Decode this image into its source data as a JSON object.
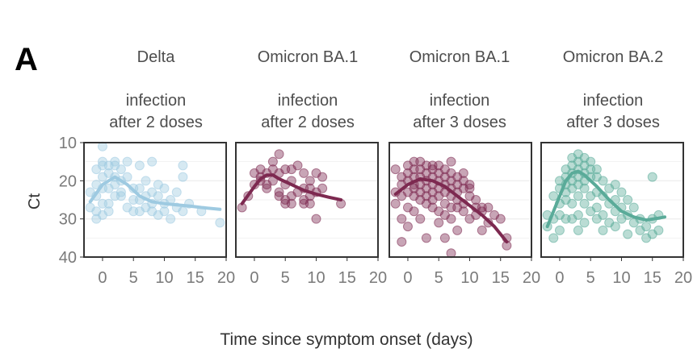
{
  "figure": {
    "panel_letter": "A",
    "xlabel": "Time since symptom onset (days)",
    "ylabel": "Ct"
  },
  "chart_data": {
    "type": "scatter",
    "xlabel": "Time since symptom onset (days)",
    "ylabel": "Ct",
    "xlim": [
      -3,
      20
    ],
    "ylim": [
      10,
      40
    ],
    "y_reversed": true,
    "x_ticks": [
      0,
      5,
      10,
      15,
      20
    ],
    "y_ticks": [
      10,
      20,
      30,
      40
    ],
    "grid": true,
    "facets": [
      {
        "title_line1": "Delta",
        "title_line2": "infection",
        "title_line3": "after 2 doses",
        "color": "#9ecae1",
        "points": [
          [
            -2,
            23
          ],
          [
            -2,
            27
          ],
          [
            -1,
            17
          ],
          [
            -1,
            21
          ],
          [
            -1,
            24
          ],
          [
            -1,
            30
          ],
          [
            -1,
            28
          ],
          [
            0,
            15
          ],
          [
            0,
            16
          ],
          [
            0,
            11
          ],
          [
            0,
            19
          ],
          [
            0,
            22
          ],
          [
            0,
            26
          ],
          [
            0,
            29
          ],
          [
            1,
            16
          ],
          [
            1,
            18
          ],
          [
            1,
            22
          ],
          [
            1,
            26
          ],
          [
            1,
            28
          ],
          [
            2,
            15
          ],
          [
            2,
            19
          ],
          [
            2,
            21
          ],
          [
            2,
            24
          ],
          [
            2,
            16
          ],
          [
            3,
            17
          ],
          [
            3,
            20
          ],
          [
            3,
            24
          ],
          [
            3,
            23
          ],
          [
            4,
            15
          ],
          [
            4,
            19
          ],
          [
            4,
            27
          ],
          [
            5,
            22
          ],
          [
            5,
            25
          ],
          [
            5,
            28
          ],
          [
            6,
            16
          ],
          [
            6,
            22
          ],
          [
            6,
            28
          ],
          [
            6,
            25
          ],
          [
            7,
            24
          ],
          [
            7,
            27
          ],
          [
            7,
            20
          ],
          [
            8,
            15
          ],
          [
            8,
            26
          ],
          [
            8,
            28
          ],
          [
            8,
            23
          ],
          [
            9,
            24
          ],
          [
            9,
            21
          ],
          [
            9,
            29
          ],
          [
            10,
            22
          ],
          [
            10,
            26
          ],
          [
            10,
            28
          ],
          [
            11,
            25
          ],
          [
            11,
            30
          ],
          [
            12,
            23
          ],
          [
            12,
            27
          ],
          [
            13,
            16
          ],
          [
            13,
            19
          ],
          [
            13,
            28
          ],
          [
            14,
            26
          ],
          [
            16,
            28
          ],
          [
            19,
            31
          ]
        ],
        "smooth": [
          [
            -2,
            25.5
          ],
          [
            0,
            21
          ],
          [
            2,
            19
          ],
          [
            4,
            21
          ],
          [
            6,
            24
          ],
          [
            8,
            25.5
          ],
          [
            10,
            26
          ],
          [
            12,
            26.3
          ],
          [
            14,
            26.6
          ],
          [
            16,
            27
          ],
          [
            19,
            27.5
          ]
        ]
      },
      {
        "title_line1": "Omicron BA.1",
        "title_line2": "infection",
        "title_line3": "after 2 doses",
        "color": "#7d2950",
        "points": [
          [
            -2,
            27
          ],
          [
            -1,
            24
          ],
          [
            0,
            21
          ],
          [
            0,
            18
          ],
          [
            1,
            17
          ],
          [
            1,
            20
          ],
          [
            1,
            19
          ],
          [
            2,
            21
          ],
          [
            2,
            22
          ],
          [
            2,
            18
          ],
          [
            3,
            15
          ],
          [
            3,
            17
          ],
          [
            3,
            20
          ],
          [
            4,
            13
          ],
          [
            4,
            18
          ],
          [
            4,
            24
          ],
          [
            4,
            23
          ],
          [
            5,
            17
          ],
          [
            5,
            21
          ],
          [
            5,
            25
          ],
          [
            5,
            26
          ],
          [
            6,
            17
          ],
          [
            6,
            20
          ],
          [
            6,
            24
          ],
          [
            6,
            26
          ],
          [
            7,
            16
          ],
          [
            7,
            23
          ],
          [
            8,
            18
          ],
          [
            8,
            22
          ],
          [
            8,
            25
          ],
          [
            8,
            26
          ],
          [
            9,
            20
          ],
          [
            9,
            22
          ],
          [
            9,
            24
          ],
          [
            9,
            26
          ],
          [
            10,
            18
          ],
          [
            10,
            23
          ],
          [
            10,
            30
          ],
          [
            11,
            19
          ],
          [
            11,
            22
          ],
          [
            14,
            26
          ]
        ],
        "smooth": [
          [
            -2,
            26
          ],
          [
            0,
            21.5
          ],
          [
            1,
            19.5
          ],
          [
            2,
            18.5
          ],
          [
            3,
            18.5
          ],
          [
            4,
            19.5
          ],
          [
            6,
            21
          ],
          [
            8,
            22.5
          ],
          [
            10,
            23.5
          ],
          [
            12,
            24.3
          ],
          [
            14,
            25
          ]
        ]
      },
      {
        "title_line1": "Omicron BA.1",
        "title_line2": "infection",
        "title_line3": "after 3 doses",
        "color": "#7d2950",
        "points": [
          [
            -2,
            23
          ],
          [
            -2,
            26
          ],
          [
            -2,
            17
          ],
          [
            -1,
            19
          ],
          [
            -1,
            21
          ],
          [
            -1,
            24
          ],
          [
            -1,
            30
          ],
          [
            -1,
            36
          ],
          [
            0,
            16
          ],
          [
            0,
            18
          ],
          [
            0,
            20
          ],
          [
            0,
            23
          ],
          [
            0,
            27
          ],
          [
            0,
            32
          ],
          [
            1,
            15
          ],
          [
            1,
            17
          ],
          [
            1,
            19
          ],
          [
            1,
            22
          ],
          [
            1,
            24
          ],
          [
            1,
            28
          ],
          [
            1,
            21
          ],
          [
            2,
            15
          ],
          [
            2,
            17
          ],
          [
            2,
            19
          ],
          [
            2,
            21
          ],
          [
            2,
            23
          ],
          [
            2,
            25
          ],
          [
            2,
            30
          ],
          [
            3,
            16
          ],
          [
            3,
            18
          ],
          [
            3,
            20
          ],
          [
            3,
            22
          ],
          [
            3,
            24
          ],
          [
            3,
            26
          ],
          [
            3,
            35
          ],
          [
            4,
            16
          ],
          [
            4,
            17
          ],
          [
            4,
            19
          ],
          [
            4,
            21
          ],
          [
            4,
            23
          ],
          [
            4,
            25
          ],
          [
            4,
            27
          ],
          [
            5,
            16
          ],
          [
            5,
            18
          ],
          [
            5,
            20
          ],
          [
            5,
            22
          ],
          [
            5,
            24
          ],
          [
            5,
            28
          ],
          [
            5,
            31
          ],
          [
            6,
            17
          ],
          [
            6,
            19
          ],
          [
            6,
            21
          ],
          [
            6,
            23
          ],
          [
            6,
            26
          ],
          [
            6,
            29
          ],
          [
            6,
            35
          ],
          [
            7,
            15
          ],
          [
            7,
            18
          ],
          [
            7,
            20
          ],
          [
            7,
            22
          ],
          [
            7,
            24
          ],
          [
            7,
            27
          ],
          [
            7,
            30
          ],
          [
            7,
            39
          ],
          [
            8,
            19
          ],
          [
            8,
            21
          ],
          [
            8,
            23
          ],
          [
            8,
            25
          ],
          [
            8,
            27
          ],
          [
            8,
            33
          ],
          [
            9,
            18
          ],
          [
            9,
            20
          ],
          [
            9,
            22
          ],
          [
            9,
            26
          ],
          [
            9,
            28
          ],
          [
            10,
            22
          ],
          [
            10,
            24
          ],
          [
            10,
            30
          ],
          [
            10,
            21
          ],
          [
            11,
            25
          ],
          [
            11,
            27
          ],
          [
            11,
            29
          ],
          [
            12,
            27
          ],
          [
            12,
            28
          ],
          [
            12,
            33
          ],
          [
            13,
            27
          ],
          [
            13,
            31
          ],
          [
            14,
            29
          ],
          [
            15,
            30
          ],
          [
            16,
            37
          ],
          [
            16,
            35
          ]
        ],
        "smooth": [
          [
            -2,
            23.5
          ],
          [
            0,
            21
          ],
          [
            2,
            19.5
          ],
          [
            4,
            20
          ],
          [
            6,
            21.5
          ],
          [
            8,
            24
          ],
          [
            10,
            26.5
          ],
          [
            12,
            29
          ],
          [
            14,
            32
          ],
          [
            16,
            36
          ]
        ]
      },
      {
        "title_line1": "Omicron BA.2",
        "title_line2": "infection",
        "title_line3": "after 3 doses",
        "color": "#5aab99",
        "points": [
          [
            -2,
            29
          ],
          [
            -2,
            32
          ],
          [
            -1,
            24
          ],
          [
            -1,
            30
          ],
          [
            -1,
            35
          ],
          [
            0,
            20
          ],
          [
            0,
            22
          ],
          [
            0,
            26
          ],
          [
            0,
            29
          ],
          [
            0,
            33
          ],
          [
            1,
            17
          ],
          [
            1,
            19
          ],
          [
            1,
            21
          ],
          [
            1,
            23
          ],
          [
            1,
            25
          ],
          [
            1,
            30
          ],
          [
            2,
            14
          ],
          [
            2,
            16
          ],
          [
            2,
            18
          ],
          [
            2,
            20
          ],
          [
            2,
            22
          ],
          [
            2,
            26
          ],
          [
            2,
            30
          ],
          [
            3,
            13
          ],
          [
            3,
            15
          ],
          [
            3,
            17
          ],
          [
            3,
            19
          ],
          [
            3,
            21
          ],
          [
            3,
            24
          ],
          [
            3,
            29
          ],
          [
            3,
            33
          ],
          [
            4,
            14
          ],
          [
            4,
            16
          ],
          [
            4,
            18
          ],
          [
            4,
            20
          ],
          [
            4,
            22
          ],
          [
            4,
            26
          ],
          [
            4,
            31
          ],
          [
            5,
            15
          ],
          [
            5,
            17
          ],
          [
            5,
            19
          ],
          [
            5,
            24
          ],
          [
            5,
            28
          ],
          [
            6,
            17
          ],
          [
            6,
            19
          ],
          [
            6,
            23
          ],
          [
            6,
            27
          ],
          [
            6,
            30
          ],
          [
            7,
            20
          ],
          [
            7,
            24
          ],
          [
            7,
            29
          ],
          [
            7,
            33
          ],
          [
            8,
            22
          ],
          [
            8,
            26
          ],
          [
            8,
            31
          ],
          [
            9,
            21
          ],
          [
            9,
            25
          ],
          [
            9,
            28
          ],
          [
            9,
            32
          ],
          [
            10,
            23
          ],
          [
            10,
            27
          ],
          [
            10,
            30
          ],
          [
            11,
            25
          ],
          [
            11,
            29
          ],
          [
            11,
            34
          ],
          [
            12,
            27
          ],
          [
            12,
            31
          ],
          [
            13,
            30
          ],
          [
            13,
            33
          ],
          [
            14,
            32
          ],
          [
            14,
            35
          ],
          [
            15,
            19
          ],
          [
            15,
            30
          ],
          [
            15,
            34
          ],
          [
            16,
            29
          ],
          [
            16,
            33
          ]
        ],
        "smooth": [
          [
            -2,
            32
          ],
          [
            -1,
            28
          ],
          [
            0,
            24
          ],
          [
            1,
            20
          ],
          [
            2,
            18
          ],
          [
            3,
            17.5
          ],
          [
            4,
            18.5
          ],
          [
            6,
            21.5
          ],
          [
            8,
            25
          ],
          [
            10,
            28
          ],
          [
            12,
            29.5
          ],
          [
            14,
            30.3
          ],
          [
            16,
            29.8
          ],
          [
            17,
            29.5
          ]
        ]
      }
    ]
  }
}
